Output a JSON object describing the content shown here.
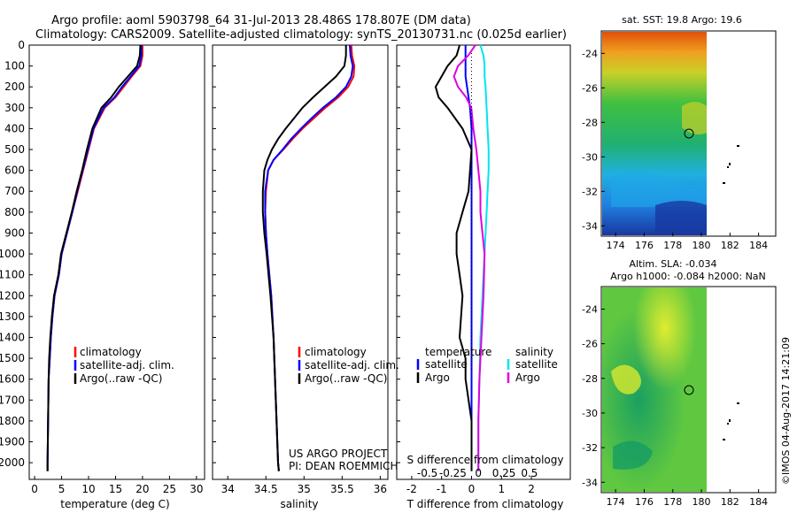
{
  "title_line1": "Argo profile: aoml 5903798_64 31-Jul-2013 28.486S 178.807E (DM data)",
  "title_line2": "Climatology: CARS2009. Satellite-adjusted climatology: synTS_20130731.nc (0.025d earlier)",
  "colors": {
    "climatology": "#ff0000",
    "satellite_adj": "#0000ff",
    "argo": "#000000",
    "sat_salinity": "#00e5ee",
    "argo_salinity": "#e000e0"
  },
  "depth_ticks": [
    "0",
    "100",
    "200",
    "300",
    "400",
    "500",
    "600",
    "700",
    "800",
    "900",
    "1000",
    "1100",
    "1200",
    "1300",
    "1400",
    "1500",
    "1600",
    "1700",
    "1800",
    "1900",
    "2000"
  ],
  "panels": {
    "temperature": {
      "xlabel": "temperature (deg C)",
      "xticks": [
        "0",
        "5",
        "10",
        "15",
        "20",
        "25",
        "30"
      ],
      "legend": [
        "climatology",
        "satellite-adj. clim.",
        "Argo(..raw -QC)"
      ]
    },
    "salinity": {
      "xlabel": "salinity",
      "xticks": [
        "34",
        "34.5",
        "35",
        "35.5",
        "36"
      ],
      "legend": [
        "climatology",
        "satellite-adj. clim.",
        "Argo(..raw -QC)"
      ],
      "note_line1": "US ARGO PROJECT",
      "note_line2": "PI: DEAN ROEMMICH"
    },
    "difference": {
      "xlabel": "T difference from climatology",
      "top_label": "S difference from climatology",
      "s_ticks": [
        "-0.5",
        "-0.25",
        "0",
        "0.25",
        "0.5"
      ],
      "t_ticks": [
        "-2",
        "-1",
        "0",
        "1",
        "2"
      ],
      "legend_temp_title": "temperature",
      "legend_sal_title": "salinity",
      "legend_temp_items": [
        "satellite",
        "Argo"
      ],
      "legend_sal_items": [
        "satellite",
        "Argo"
      ]
    }
  },
  "maps": {
    "sst": {
      "title": "sat. SST: 19.8  Argo: 19.6",
      "xticks": [
        "174",
        "176",
        "178",
        "180",
        "182",
        "184"
      ],
      "yticks": [
        "-24",
        "-26",
        "-28",
        "-30",
        "-32",
        "-34"
      ]
    },
    "sla": {
      "title_line1": "Altim. SLA: -0.034",
      "title_line2": "Argo h1000: -0.084  h2000: NaN",
      "xticks": [
        "174",
        "176",
        "178",
        "180",
        "182",
        "184"
      ],
      "yticks": [
        "-24",
        "-26",
        "-28",
        "-30",
        "-32",
        "-34"
      ]
    },
    "float_position": {
      "lon": 178.807,
      "lat": -28.486
    }
  },
  "footer": "©IMOS 04-Aug-2017 14:21:09",
  "chart_data": [
    {
      "type": "line",
      "title": "",
      "xlabel": "temperature (deg C)",
      "ylabel": "",
      "xlim": [
        -1,
        31.5
      ],
      "ylim": [
        2080,
        0
      ],
      "series": [
        {
          "name": "climatology",
          "x": [
            20,
            20,
            19.6,
            18,
            16.5,
            15,
            13,
            11,
            10,
            9,
            8,
            7,
            6,
            5,
            4.5,
            3.7,
            3.3,
            3,
            2.8,
            2.6,
            2.5,
            2.4,
            2.4
          ],
          "y": [
            0,
            50,
            100,
            150,
            200,
            250,
            300,
            400,
            500,
            600,
            700,
            800,
            900,
            1000,
            1100,
            1200,
            1300,
            1400,
            1500,
            1600,
            1800,
            2000,
            2040
          ]
        },
        {
          "name": "satellite-adj. clim.",
          "x": [
            19.8,
            19.8,
            19.4,
            17.8,
            16.2,
            14.8,
            12.8,
            10.9,
            9.9,
            8.9,
            7.9,
            7,
            6,
            5,
            4.5,
            3.7,
            3.3,
            3,
            2.8,
            2.6,
            2.5,
            2.4,
            2.4
          ],
          "y": [
            0,
            50,
            100,
            150,
            200,
            250,
            300,
            400,
            500,
            600,
            700,
            800,
            900,
            1000,
            1100,
            1200,
            1300,
            1400,
            1500,
            1600,
            1800,
            2000,
            2040
          ]
        },
        {
          "name": "Argo(..raw -QC)",
          "x": [
            19.6,
            19.5,
            19,
            17.3,
            15.6,
            14.2,
            12.4,
            10.7,
            9.7,
            8.8,
            7.8,
            6.9,
            5.9,
            4.9,
            4.4,
            3.6,
            3.2,
            2.9,
            2.7,
            2.6,
            2.5,
            2.4,
            2.4
          ],
          "y": [
            0,
            50,
            100,
            150,
            200,
            250,
            300,
            400,
            500,
            600,
            700,
            800,
            900,
            1000,
            1100,
            1200,
            1300,
            1400,
            1500,
            1600,
            1800,
            2000,
            2040
          ]
        }
      ]
    },
    {
      "type": "line",
      "title": "",
      "xlabel": "salinity",
      "ylabel": "",
      "xlim": [
        33.8,
        36.1
      ],
      "ylim": [
        2080,
        0
      ],
      "series": [
        {
          "name": "climatology",
          "x": [
            35.62,
            35.63,
            35.66,
            35.65,
            35.58,
            35.45,
            35.28,
            35.13,
            34.98,
            34.85,
            34.73,
            34.6,
            34.53,
            34.5,
            34.49,
            34.5,
            34.52,
            34.57,
            34.6,
            34.62,
            34.64,
            34.66,
            34.67
          ],
          "y": [
            0,
            50,
            100,
            150,
            200,
            250,
            300,
            350,
            400,
            450,
            500,
            550,
            600,
            700,
            800,
            900,
            1000,
            1200,
            1400,
            1600,
            1800,
            2000,
            2040
          ]
        },
        {
          "name": "satellite-adj. clim.",
          "x": [
            35.6,
            35.61,
            35.64,
            35.62,
            35.55,
            35.42,
            35.25,
            35.1,
            34.96,
            34.83,
            34.72,
            34.6,
            34.53,
            34.49,
            34.49,
            34.5,
            34.52,
            34.57,
            34.6,
            34.62,
            34.64,
            34.66,
            34.67
          ],
          "y": [
            0,
            50,
            100,
            150,
            200,
            250,
            300,
            350,
            400,
            450,
            500,
            550,
            600,
            700,
            800,
            900,
            1000,
            1200,
            1400,
            1600,
            1800,
            2000,
            2040
          ]
        },
        {
          "name": "Argo(..raw -QC)",
          "x": [
            35.55,
            35.55,
            35.53,
            35.42,
            35.27,
            35.12,
            34.98,
            34.87,
            34.76,
            34.66,
            34.58,
            34.52,
            34.48,
            34.46,
            34.46,
            34.48,
            34.51,
            34.56,
            34.6,
            34.62,
            34.64,
            34.66,
            34.67
          ],
          "y": [
            0,
            50,
            100,
            150,
            200,
            250,
            300,
            350,
            400,
            450,
            500,
            550,
            600,
            700,
            800,
            900,
            1000,
            1200,
            1400,
            1600,
            1800,
            2000,
            2040
          ]
        }
      ]
    },
    {
      "type": "line",
      "title": "",
      "xlabel": "T difference from climatology",
      "ylabel": "",
      "xlim": [
        -2.5,
        3.3
      ],
      "ylim": [
        2080,
        0
      ],
      "series": [
        {
          "name": "temperature satellite",
          "x": [
            -0.2,
            -0.2,
            -0.2,
            -0.2,
            -0.15,
            -0.1,
            -0.05,
            0,
            0,
            0,
            0,
            0,
            0,
            0,
            0,
            0,
            0,
            0,
            0,
            0,
            0,
            0
          ],
          "y": [
            0,
            50,
            100,
            150,
            200,
            250,
            300,
            400,
            500,
            600,
            700,
            800,
            900,
            1000,
            1200,
            1400,
            1500,
            1600,
            1700,
            1800,
            1900,
            2040
          ]
        },
        {
          "name": "temperature Argo",
          "x": [
            -0.4,
            -0.5,
            -0.8,
            -1.0,
            -1.2,
            -1.1,
            -0.8,
            -0.3,
            0,
            -0.1,
            -0.3,
            -0.5,
            -0.5,
            -0.4,
            -0.3,
            -0.4,
            -0.2,
            -0.2,
            0,
            0,
            0
          ],
          "y": [
            0,
            50,
            100,
            150,
            200,
            250,
            300,
            400,
            500,
            700,
            800,
            900,
            1000,
            1100,
            1200,
            1400,
            1500,
            1600,
            1800,
            1900,
            2040
          ]
        }
      ]
    },
    {
      "type": "line",
      "title": "",
      "xlabel": "S difference from climatology",
      "ylabel": "",
      "xlim": [
        -0.8,
        0.9
      ],
      "ylim": [
        2080,
        0
      ],
      "series": [
        {
          "name": "salinity satellite",
          "x": [
            0.02,
            0.05,
            0.06,
            0.06,
            0.07,
            0.08,
            0.09,
            0.1,
            0.1,
            0.09,
            0.08,
            0.06,
            0.04,
            0.02,
            0.01,
            0,
            0
          ],
          "y": [
            0,
            50,
            100,
            150,
            200,
            300,
            400,
            500,
            600,
            700,
            800,
            1000,
            1200,
            1400,
            1600,
            1800,
            2040
          ]
        },
        {
          "name": "salinity Argo",
          "x": [
            -0.03,
            -0.1,
            -0.2,
            -0.24,
            -0.2,
            -0.12,
            -0.07,
            -0.05,
            -0.02,
            0,
            0.02,
            0.02,
            0.04,
            0.06,
            0.05,
            0.03,
            0.01,
            0,
            0
          ],
          "y": [
            0,
            50,
            100,
            150,
            200,
            250,
            300,
            400,
            500,
            600,
            700,
            800,
            900,
            1000,
            1200,
            1400,
            1600,
            1800,
            2040
          ]
        }
      ]
    }
  ]
}
